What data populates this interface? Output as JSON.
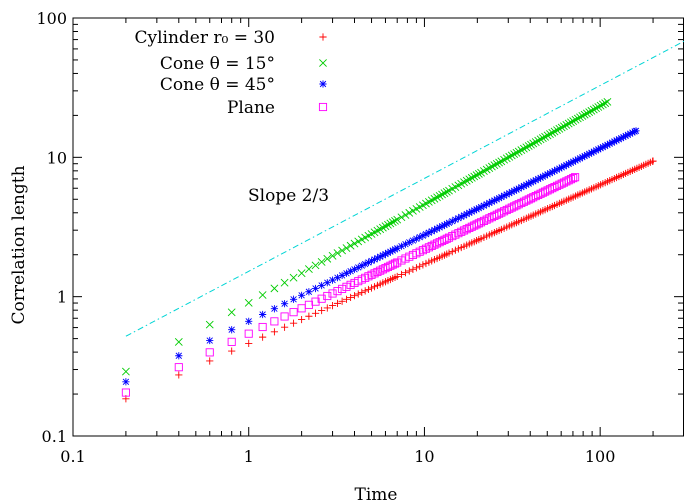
{
  "chart_data": {
    "type": "scatter",
    "title": "",
    "xlabel": "Time",
    "ylabel": "Correlation length",
    "xscale": "log",
    "yscale": "log",
    "xlim": [
      0.1,
      300
    ],
    "ylim": [
      0.1,
      100
    ],
    "xticks": [
      0.1,
      1,
      10,
      100
    ],
    "yticks": [
      0.1,
      1,
      10,
      100
    ],
    "xtick_labels": [
      "0.1",
      "1",
      "10",
      "100"
    ],
    "ytick_labels": [
      "0.1",
      "1",
      "10",
      "100"
    ],
    "grid": false,
    "legend_position": "top-left",
    "series": [
      {
        "name": "Cylinder r₀ = 30",
        "marker": "+",
        "color": "#ff0000",
        "x_start": 0.2,
        "x_step": 0.2,
        "x_end": 200,
        "y_start": 0.185,
        "y_end": 9.4
      },
      {
        "name": "Cone θ = 15°",
        "marker": "x",
        "color": "#00cc00",
        "x_start": 0.2,
        "x_step": 0.2,
        "x_end": 110,
        "y_start": 0.29,
        "y_end": 25
      },
      {
        "name": "Cone θ = 45°",
        "marker": "*",
        "color": "#0000ff",
        "x_start": 0.2,
        "x_step": 0.2,
        "x_end": 160,
        "y_start": 0.245,
        "y_end": 15.5
      },
      {
        "name": "Plane",
        "marker": "square",
        "color": "#ff00ff",
        "x_start": 0.2,
        "x_step": 0.2,
        "x_end": 72,
        "y_start": 0.205,
        "y_end": 7.2
      }
    ],
    "reference_line": {
      "label": "Slope 2/3",
      "slope": 0.6667,
      "x_start": 0.2,
      "y_start": 0.52,
      "x_end": 300,
      "color": "#00d5d5",
      "style": "dash-dot"
    }
  }
}
